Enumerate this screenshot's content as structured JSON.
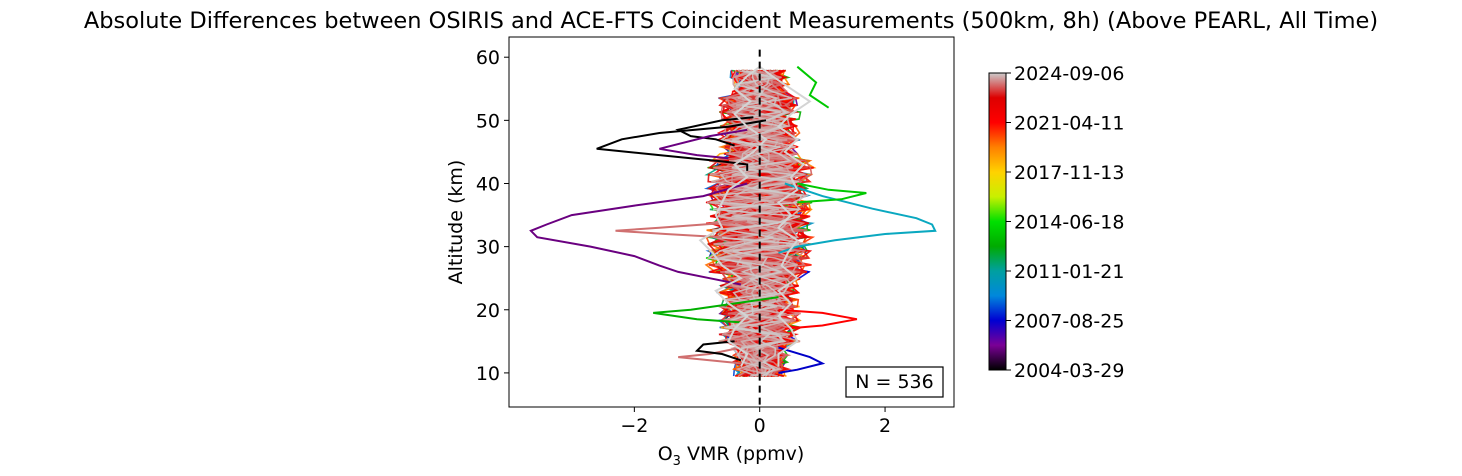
{
  "chart_data": {
    "type": "line",
    "title": "Absolute Differences between OSIRIS and ACE-FTS Coincident Measurements (500km, 8h) (Above PEARL, All Time)",
    "xlabel_main": "O",
    "xlabel_sub": "3",
    "xlabel_rest": " VMR (ppmv)",
    "ylabel": "Altitude (km)",
    "xlim": [
      -4.0,
      3.1
    ],
    "ylim": [
      4.6,
      63.2
    ],
    "xticks": [
      -2,
      0,
      2
    ],
    "xtick_labels": [
      "−2",
      "0",
      "2"
    ],
    "yticks": [
      10,
      20,
      30,
      40,
      50,
      60
    ],
    "ytick_labels": [
      "10",
      "20",
      "30",
      "40",
      "50",
      "60"
    ],
    "annotation": "N = 536",
    "zero_line": {
      "x": 0,
      "y_range": [
        4.6,
        61.2
      ],
      "style": "dashed",
      "color": "#000000"
    },
    "colorbar": {
      "tick_labels": [
        "2024-09-06",
        "2021-04-11",
        "2017-11-13",
        "2014-06-18",
        "2011-01-21",
        "2007-08-25",
        "2004-03-29"
      ],
      "colormap_stops": [
        "#000000",
        "#7a0096",
        "#0000d2",
        "#0088dc",
        "#00a0a0",
        "#00aa00",
        "#00e000",
        "#c8f000",
        "#ffd200",
        "#ff8000",
        "#ff0000",
        "#dd0000",
        "#cccccc"
      ]
    },
    "highlighted_profiles": [
      {
        "color": "#000000",
        "points": [
          [
            0.1,
            50
          ],
          [
            -0.5,
            49
          ],
          [
            -1.6,
            48
          ],
          [
            -2.2,
            47
          ],
          [
            -2.6,
            45.5
          ],
          [
            -1.6,
            44.5
          ],
          [
            -0.6,
            43.5
          ],
          [
            -0.2,
            43
          ],
          [
            -0.2,
            42
          ]
        ]
      },
      {
        "color": "#000000",
        "points": [
          [
            -0.1,
            50.5
          ],
          [
            -0.6,
            50
          ],
          [
            -1.3,
            48.5
          ],
          [
            -1.1,
            47.5
          ],
          [
            -0.7,
            47
          ],
          [
            -0.4,
            46
          ]
        ]
      },
      {
        "color": "#6a0080",
        "points": [
          [
            -0.2,
            48.5
          ],
          [
            -0.8,
            47.5
          ],
          [
            -1.6,
            45.5
          ],
          [
            -1.0,
            44.5
          ],
          [
            -0.5,
            44
          ]
        ]
      },
      {
        "color": "#6a0080",
        "points": [
          [
            -0.2,
            40
          ],
          [
            -0.9,
            38
          ],
          [
            -2.0,
            36.5
          ],
          [
            -3.0,
            35
          ],
          [
            -3.4,
            33.5
          ],
          [
            -3.65,
            32.5
          ],
          [
            -3.55,
            31.5
          ],
          [
            -2.7,
            30
          ],
          [
            -2.0,
            28.5
          ],
          [
            -1.6,
            27
          ],
          [
            -1.3,
            26
          ],
          [
            -0.8,
            25
          ],
          [
            -0.3,
            24
          ]
        ]
      },
      {
        "color": "#0aa8c0",
        "points": [
          [
            0.4,
            40
          ],
          [
            1.0,
            38
          ],
          [
            1.8,
            36
          ],
          [
            2.5,
            34.5
          ],
          [
            2.75,
            33.5
          ],
          [
            2.8,
            32.5
          ],
          [
            2.0,
            32
          ],
          [
            1.2,
            31
          ],
          [
            0.6,
            30
          ],
          [
            0.3,
            29
          ]
        ]
      },
      {
        "color": "#00b000",
        "points": [
          [
            0.3,
            22
          ],
          [
            -0.4,
            21
          ],
          [
            -1.1,
            20
          ],
          [
            -1.7,
            19.5
          ],
          [
            -1.0,
            18.5
          ],
          [
            -0.3,
            18
          ]
        ]
      },
      {
        "color": "#ff0000",
        "points": [
          [
            0.3,
            20
          ],
          [
            1.0,
            19.5
          ],
          [
            1.55,
            18.5
          ],
          [
            1.0,
            17.5
          ],
          [
            0.4,
            17
          ]
        ]
      },
      {
        "color": "#d07070",
        "points": [
          [
            -0.2,
            34
          ],
          [
            -0.9,
            33.5
          ],
          [
            -1.6,
            33
          ],
          [
            -2.3,
            32.5
          ],
          [
            -1.5,
            32
          ],
          [
            -0.6,
            31.5
          ]
        ]
      },
      {
        "color": "#d07070",
        "points": [
          [
            -0.3,
            14
          ],
          [
            -0.8,
            13
          ],
          [
            -1.3,
            12.5
          ],
          [
            -0.8,
            12
          ],
          [
            -0.3,
            11.5
          ]
        ]
      },
      {
        "color": "#000000",
        "points": [
          [
            -0.4,
            15
          ],
          [
            -0.9,
            14.5
          ],
          [
            -1.0,
            13.5
          ],
          [
            -0.6,
            13
          ],
          [
            -0.3,
            12
          ]
        ]
      },
      {
        "color": "#0000c8",
        "points": [
          [
            0.3,
            14
          ],
          [
            0.8,
            12.5
          ],
          [
            1.0,
            11.5
          ],
          [
            0.6,
            10.5
          ],
          [
            0.3,
            10
          ]
        ]
      },
      {
        "color": "#00c800",
        "points": [
          [
            0.6,
            58.5
          ],
          [
            0.9,
            56
          ],
          [
            0.8,
            54
          ],
          [
            1.1,
            52
          ]
        ]
      },
      {
        "color": "#00c800",
        "points": [
          [
            0.6,
            40
          ],
          [
            1.1,
            39
          ],
          [
            1.7,
            38.5
          ],
          [
            1.3,
            37.5
          ],
          [
            0.6,
            37
          ]
        ]
      },
      {
        "color": "#d4d4d4",
        "points": [
          [
            0.0,
            58.5
          ],
          [
            -0.2,
            57
          ],
          [
            -0.4,
            55
          ],
          [
            -0.15,
            53
          ],
          [
            -0.4,
            51
          ],
          [
            -0.2,
            49
          ],
          [
            0.1,
            47
          ],
          [
            -0.1,
            45
          ],
          [
            -0.4,
            43
          ],
          [
            -0.2,
            41
          ],
          [
            -0.5,
            39
          ],
          [
            -0.6,
            37
          ],
          [
            -0.7,
            35
          ],
          [
            -0.6,
            33
          ],
          [
            -0.95,
            31
          ],
          [
            -0.75,
            29
          ],
          [
            -0.6,
            27
          ],
          [
            -0.3,
            25
          ],
          [
            -0.7,
            23
          ],
          [
            -0.5,
            21
          ],
          [
            -0.2,
            19
          ],
          [
            -0.4,
            17
          ],
          [
            -0.5,
            15
          ],
          [
            -0.2,
            13
          ],
          [
            -0.3,
            11
          ]
        ]
      },
      {
        "color": "#d4d4d4",
        "points": [
          [
            0.0,
            58.5
          ],
          [
            0.2,
            57
          ],
          [
            0.5,
            55
          ],
          [
            0.8,
            53
          ],
          [
            0.5,
            51
          ],
          [
            0.3,
            49
          ],
          [
            0.6,
            47
          ],
          [
            0.4,
            45
          ],
          [
            0.7,
            43
          ],
          [
            0.5,
            41
          ],
          [
            0.6,
            39
          ],
          [
            0.3,
            37
          ],
          [
            0.5,
            35
          ],
          [
            0.3,
            33
          ],
          [
            0.6,
            31
          ],
          [
            0.45,
            29
          ],
          [
            0.35,
            27
          ],
          [
            0.6,
            25
          ],
          [
            0.3,
            23
          ],
          [
            0.5,
            21
          ],
          [
            0.3,
            19
          ],
          [
            0.5,
            17
          ],
          [
            0.6,
            15
          ],
          [
            0.3,
            13
          ],
          [
            0.3,
            11
          ]
        ]
      }
    ]
  }
}
